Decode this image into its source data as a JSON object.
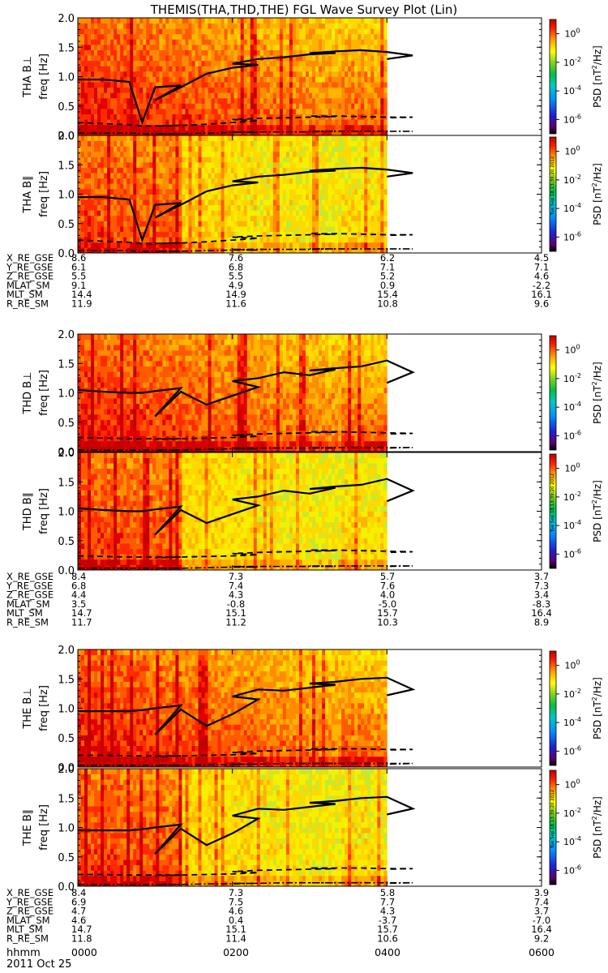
{
  "chart_data": {
    "type": "heatmap",
    "title": "THEMIS(THA,THD,THE) FGL Wave Survey Plot (Lin)",
    "xlabel": "hhmm",
    "date_label": "2011 Oct 25",
    "x_ticks": [
      "0000",
      "0200",
      "0400",
      "0600"
    ],
    "x_range_hhmm": [
      0,
      600
    ],
    "data_end_hhmm": 400,
    "y_label_unit": "freq [Hz]",
    "y_range": [
      0,
      2
    ],
    "y_ticks": [
      "0.0",
      "0.5",
      "1.0",
      "1.5",
      "2.0"
    ],
    "colorbar": {
      "label": "PSD [nT²/Hz]",
      "label_base": "PSD [nT",
      "label_sup": "2",
      "label_tail": "/Hz]",
      "tick_base": "10",
      "tick_exponents": [
        "0",
        "-2",
        "-4",
        "-6"
      ],
      "tick_values": [
        1,
        0.01,
        0.0001,
        1e-06
      ],
      "scale": "log",
      "stamp": "Tue Sep 18 13:39:20 2012"
    },
    "panels": [
      {
        "label": "THA B⊥",
        "probe": "THA",
        "component": "perp"
      },
      {
        "label": "THA B∥",
        "probe": "THA",
        "component": "par"
      },
      {
        "label": "THD B⊥",
        "probe": "THD",
        "component": "perp"
      },
      {
        "label": "THD B∥",
        "probe": "THD",
        "component": "par"
      },
      {
        "label": "THE B⊥",
        "probe": "THE",
        "component": "perp"
      },
      {
        "label": "THE B∥",
        "probe": "THE",
        "component": "par"
      }
    ],
    "gyro_curves": {
      "time_hhmm": [
        0,
        20,
        40,
        50,
        60,
        80,
        100,
        120,
        140,
        160,
        180,
        200,
        220,
        240,
        260,
        280,
        300,
        320,
        340,
        360,
        380,
        400
      ],
      "THA": {
        "solid": [
          0.95,
          0.95,
          0.91,
          0.22,
          0.82,
          0.85,
          0.6,
          0.82,
          1.05,
          1.15,
          1.2,
          1.22,
          1.3,
          1.33,
          1.38,
          1.4,
          1.4,
          1.43,
          1.45,
          1.42,
          1.36,
          1.3
        ],
        "dashed": [
          0.22,
          0.2,
          0.18,
          0.16,
          0.16,
          0.17,
          0.16,
          0.17,
          0.19,
          0.22,
          0.25,
          0.27,
          0.29,
          0.3,
          0.31,
          0.32,
          0.33,
          0.33,
          0.32,
          0.31,
          0.31,
          0.3
        ],
        "dashdot": [
          0.04,
          0.04,
          0.04,
          0.03,
          0.03,
          0.03,
          0.03,
          0.03,
          0.04,
          0.05,
          0.05,
          0.06,
          0.06,
          0.06,
          0.06,
          0.07,
          0.07,
          0.07,
          0.07,
          0.07,
          0.07,
          0.07
        ]
      },
      "THD": {
        "solid": [
          1.05,
          1.02,
          1.0,
          1.0,
          1.03,
          1.08,
          0.6,
          1.02,
          0.8,
          0.95,
          1.1,
          1.2,
          1.25,
          1.35,
          1.3,
          1.4,
          1.38,
          1.42,
          1.45,
          1.55,
          1.35,
          1.17
        ],
        "dashed": [
          0.24,
          0.23,
          0.22,
          0.22,
          0.22,
          0.22,
          0.21,
          0.22,
          0.23,
          0.24,
          0.26,
          0.28,
          0.3,
          0.31,
          0.32,
          0.33,
          0.34,
          0.34,
          0.33,
          0.32,
          0.31,
          0.3
        ],
        "dashdot": [
          0.03,
          0.03,
          0.03,
          0.03,
          0.03,
          0.03,
          0.03,
          0.03,
          0.04,
          0.05,
          0.05,
          0.06,
          0.06,
          0.06,
          0.06,
          0.06,
          0.07,
          0.07,
          0.07,
          0.07,
          0.07,
          0.06
        ]
      },
      "THE": {
        "solid": [
          0.95,
          0.95,
          0.95,
          0.97,
          1.0,
          1.05,
          0.55,
          0.98,
          0.7,
          0.9,
          1.15,
          1.2,
          1.32,
          1.3,
          1.35,
          1.4,
          1.42,
          1.45,
          1.5,
          1.52,
          1.32,
          1.22
        ],
        "dashed": [
          0.2,
          0.2,
          0.19,
          0.19,
          0.19,
          0.19,
          0.18,
          0.19,
          0.2,
          0.21,
          0.23,
          0.25,
          0.27,
          0.28,
          0.29,
          0.3,
          0.31,
          0.31,
          0.31,
          0.3,
          0.3,
          0.29
        ],
        "dashdot": [
          0.03,
          0.03,
          0.03,
          0.03,
          0.03,
          0.03,
          0.03,
          0.03,
          0.04,
          0.04,
          0.05,
          0.05,
          0.05,
          0.06,
          0.06,
          0.06,
          0.06,
          0.06,
          0.06,
          0.06,
          0.06,
          0.05
        ]
      }
    },
    "orbit_tables": [
      {
        "probe": "THA",
        "rows": [
          {
            "label": "X_RE_GSE",
            "values": [
              "8.6",
              "7.6",
              "6.2",
              "4.5"
            ]
          },
          {
            "label": "Y_RE_GSE",
            "values": [
              "6.1",
              "6.8",
              "7.1",
              "7.1"
            ]
          },
          {
            "label": "Z_RE_GSE",
            "values": [
              "5.5",
              "5.5",
              "5.2",
              "4.6"
            ]
          },
          {
            "label": "MLAT_SM",
            "values": [
              "9.1",
              "4.9",
              "0.9",
              "-2.2"
            ]
          },
          {
            "label": "MLT_SM",
            "values": [
              "14.4",
              "14.9",
              "15.4",
              "16.1"
            ]
          },
          {
            "label": "R_RE_SM",
            "values": [
              "11.9",
              "11.6",
              "10.8",
              "9.6"
            ]
          }
        ]
      },
      {
        "probe": "THD",
        "rows": [
          {
            "label": "X_RE_GSE",
            "values": [
              "8.4",
              "7.3",
              "5.7",
              "3.7"
            ]
          },
          {
            "label": "Y_RE_GSE",
            "values": [
              "6.8",
              "7.4",
              "7.6",
              "7.3"
            ]
          },
          {
            "label": "Z_RE_GSE",
            "values": [
              "4.4",
              "4.3",
              "4.0",
              "3.4"
            ]
          },
          {
            "label": "MLAT_SM",
            "values": [
              "3.5",
              "-0.8",
              "-5.0",
              "-8.3"
            ]
          },
          {
            "label": "MLT_SM",
            "values": [
              "14.7",
              "15.1",
              "15.7",
              "16.4"
            ]
          },
          {
            "label": "R_RE_SM",
            "values": [
              "11.7",
              "11.2",
              "10.3",
              "8.9"
            ]
          }
        ]
      },
      {
        "probe": "THE",
        "rows": [
          {
            "label": "X_RE_GSE",
            "values": [
              "8.4",
              "7.3",
              "5.8",
              "3.9"
            ]
          },
          {
            "label": "Y_RE_GSE",
            "values": [
              "6.9",
              "7.5",
              "7.7",
              "7.4"
            ]
          },
          {
            "label": "Z_RE_GSE",
            "values": [
              "4.7",
              "4.6",
              "4.3",
              "3.7"
            ]
          },
          {
            "label": "MLAT_SM",
            "values": [
              "4.6",
              "0.4",
              "-3.7",
              "-7.0"
            ]
          },
          {
            "label": "MLT_SM",
            "values": [
              "14.7",
              "15.1",
              "15.7",
              "16.4"
            ]
          },
          {
            "label": "R_RE_SM",
            "values": [
              "11.8",
              "11.4",
              "10.6",
              "9.2"
            ]
          }
        ]
      }
    ]
  }
}
